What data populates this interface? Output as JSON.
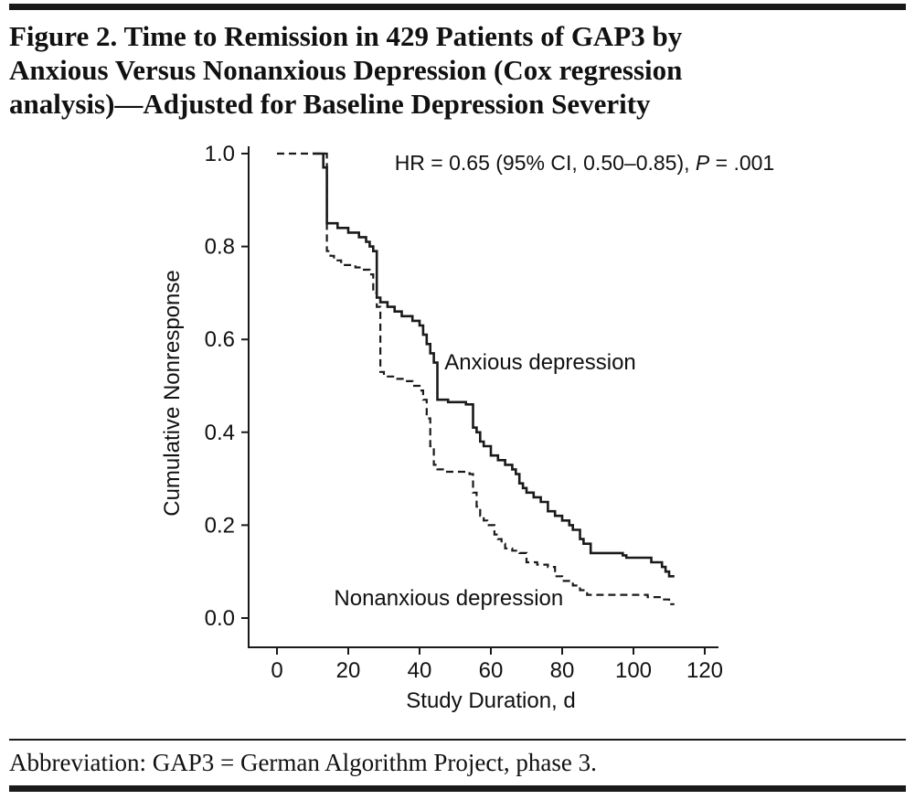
{
  "figure": {
    "title_lines": [
      "Figure 2. Time to Remission in 429 Patients of GAP3 by",
      "Anxious Versus Nonanxious Depression (Cox regression",
      "analysis)—Adjusted for Baseline Depression Severity"
    ],
    "footnote": "Abbreviation: GAP3 = German Algorithm Project, phase 3."
  },
  "chart_data": {
    "type": "line",
    "variant": "step",
    "title": "",
    "xlabel": "Study Duration, d",
    "ylabel": "Cumulative Nonresponse",
    "xlim": [
      0,
      120
    ],
    "ylim": [
      0.0,
      1.0
    ],
    "xticks": [
      0,
      20,
      40,
      60,
      80,
      100,
      120
    ],
    "yticks": [
      0,
      0.2,
      0.4,
      0.6,
      0.8,
      1
    ],
    "ytick_labels": [
      "0.0",
      "0.2",
      "0.4",
      "0.6",
      "0.8",
      "1.0"
    ],
    "grid": false,
    "legend_position": "inline-labels",
    "line_color": "#1a1a1a",
    "annotation": {
      "x": 33,
      "y": 0.965,
      "parts": [
        {
          "text": "HR = 0.65 (95% CI, 0.50–0.85), ",
          "italic": false
        },
        {
          "text": "P",
          "italic": true
        },
        {
          "text": " = .001",
          "italic": false
        }
      ]
    },
    "series": [
      {
        "name": "Anxious depression",
        "line": "solid",
        "label": {
          "x": 47,
          "y": 0.535
        },
        "steps": [
          [
            10,
            1.0
          ],
          [
            13,
            0.97
          ],
          [
            14,
            0.85
          ],
          [
            17,
            0.84
          ],
          [
            20,
            0.83
          ],
          [
            23,
            0.82
          ],
          [
            25,
            0.81
          ],
          [
            26,
            0.8
          ],
          [
            27,
            0.79
          ],
          [
            28,
            0.69
          ],
          [
            29,
            0.68
          ],
          [
            31,
            0.67
          ],
          [
            33,
            0.66
          ],
          [
            35,
            0.65
          ],
          [
            38,
            0.64
          ],
          [
            40,
            0.63
          ],
          [
            41,
            0.61
          ],
          [
            42,
            0.59
          ],
          [
            43,
            0.57
          ],
          [
            44,
            0.55
          ],
          [
            45,
            0.47
          ],
          [
            48,
            0.465
          ],
          [
            53,
            0.46
          ],
          [
            55,
            0.41
          ],
          [
            56,
            0.4
          ],
          [
            57,
            0.38
          ],
          [
            58,
            0.37
          ],
          [
            60,
            0.35
          ],
          [
            62,
            0.34
          ],
          [
            64,
            0.33
          ],
          [
            66,
            0.32
          ],
          [
            67,
            0.31
          ],
          [
            68,
            0.29
          ],
          [
            69,
            0.28
          ],
          [
            70,
            0.27
          ],
          [
            72,
            0.26
          ],
          [
            74,
            0.25
          ],
          [
            76,
            0.23
          ],
          [
            78,
            0.22
          ],
          [
            80,
            0.21
          ],
          [
            82,
            0.2
          ],
          [
            83,
            0.19
          ],
          [
            85,
            0.17
          ],
          [
            86,
            0.16
          ],
          [
            88,
            0.14
          ],
          [
            97,
            0.135
          ],
          [
            98,
            0.13
          ],
          [
            105,
            0.12
          ],
          [
            108,
            0.11
          ],
          [
            109,
            0.1
          ],
          [
            110,
            0.09
          ]
        ]
      },
      {
        "name": "Nonanxious depression",
        "line": "dashed",
        "label": {
          "x": 16,
          "y": 0.028
        },
        "steps": [
          [
            0,
            1.0
          ],
          [
            14,
            0.79
          ],
          [
            15,
            0.78
          ],
          [
            16,
            0.77
          ],
          [
            18,
            0.76
          ],
          [
            22,
            0.755
          ],
          [
            24,
            0.75
          ],
          [
            26,
            0.74
          ],
          [
            27,
            0.7
          ],
          [
            28,
            0.67
          ],
          [
            29,
            0.53
          ],
          [
            30,
            0.52
          ],
          [
            33,
            0.515
          ],
          [
            36,
            0.51
          ],
          [
            38,
            0.5
          ],
          [
            40,
            0.49
          ],
          [
            41,
            0.47
          ],
          [
            42,
            0.43
          ],
          [
            43,
            0.37
          ],
          [
            44,
            0.33
          ],
          [
            45,
            0.32
          ],
          [
            47,
            0.315
          ],
          [
            54,
            0.31
          ],
          [
            55,
            0.27
          ],
          [
            56,
            0.24
          ],
          [
            57,
            0.22
          ],
          [
            58,
            0.21
          ],
          [
            59,
            0.2
          ],
          [
            61,
            0.18
          ],
          [
            62,
            0.17
          ],
          [
            63,
            0.16
          ],
          [
            64,
            0.15
          ],
          [
            66,
            0.145
          ],
          [
            68,
            0.14
          ],
          [
            70,
            0.12
          ],
          [
            73,
            0.115
          ],
          [
            76,
            0.11
          ],
          [
            78,
            0.09
          ],
          [
            80,
            0.08
          ],
          [
            83,
            0.07
          ],
          [
            85,
            0.06
          ],
          [
            87,
            0.05
          ],
          [
            104,
            0.045
          ],
          [
            108,
            0.04
          ],
          [
            110,
            0.03
          ]
        ]
      }
    ]
  }
}
